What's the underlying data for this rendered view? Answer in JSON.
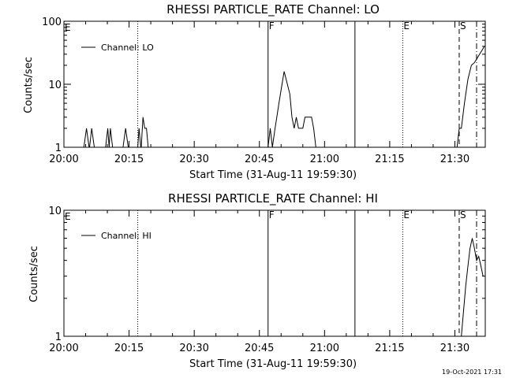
{
  "footer": {
    "date_stamp": "19-Oct-2021 17:31"
  },
  "chart_data": [
    {
      "type": "line",
      "title": "RHESSI PARTICLE_RATE Channel: LO",
      "xlabel": "Start Time (31-Aug-11 19:59:30)",
      "ylabel": "Counts/sec",
      "yscale": "log",
      "ylim": [
        1,
        100
      ],
      "xlim": [
        "20:00",
        "21:37"
      ],
      "x_ticks": [
        "20:00",
        "20:15",
        "20:30",
        "20:45",
        "21:00",
        "21:15",
        "21:30"
      ],
      "y_ticks": [
        "1",
        "10",
        "100"
      ],
      "legend": {
        "label": "Channel: LO",
        "placement": "top-left"
      },
      "vlines": [
        {
          "time": "20:17",
          "style": "dotted",
          "label": ""
        },
        {
          "time": "20:47",
          "style": "solid",
          "label": "F"
        },
        {
          "time": "21:07",
          "style": "solid",
          "label": ""
        },
        {
          "time": "21:18",
          "style": "dotted",
          "label": "E"
        },
        {
          "time": "21:31",
          "style": "dashed",
          "label": "S"
        },
        {
          "time": "21:35",
          "style": "dashdot",
          "label": ""
        }
      ],
      "corner_label": "E",
      "series": [
        {
          "segments": [
            [
              [
                "20:04.6",
                1
              ],
              [
                "20:05.2",
                2
              ],
              [
                "20:05.8",
                1
              ]
            ],
            [
              [
                "20:05.9",
                1
              ],
              [
                "20:06.4",
                2
              ],
              [
                "20:07.0",
                1
              ]
            ],
            [
              [
                "20:09.6",
                1
              ],
              [
                "20:10.1",
                2
              ],
              [
                "20:10.4",
                1
              ],
              [
                "20:10.7",
                2
              ],
              [
                "20:11.2",
                1
              ]
            ],
            [
              [
                "20:13.6",
                1
              ],
              [
                "20:14.2",
                2
              ],
              [
                "20:14.8",
                1
              ]
            ],
            [
              [
                "20:17.0",
                1
              ],
              [
                "20:17.3",
                2
              ],
              [
                "20:17.7",
                1
              ]
            ],
            [
              [
                "20:17.8",
                1
              ],
              [
                "20:18.2",
                3
              ],
              [
                "20:18.6",
                2
              ],
              [
                "20:19.0",
                2
              ],
              [
                "20:19.4",
                1
              ]
            ],
            [
              [
                "20:47.0",
                1
              ],
              [
                "20:47.5",
                2
              ],
              [
                "20:48.0",
                1
              ],
              [
                "20:48.6",
                2
              ],
              [
                "20:49.0",
                3
              ],
              [
                "20:49.5",
                5
              ],
              [
                "20:50.2",
                10
              ],
              [
                "20:50.7",
                16
              ],
              [
                "20:51.3",
                11
              ],
              [
                "20:52.0",
                7
              ],
              [
                "20:52.5",
                3
              ],
              [
                "20:53.0",
                2
              ],
              [
                "20:53.5",
                3
              ],
              [
                "20:54.0",
                2
              ],
              [
                "20:54.5",
                2
              ],
              [
                "20:55.0",
                2
              ],
              [
                "20:55.5",
                3
              ],
              [
                "20:56.0",
                3
              ],
              [
                "20:56.5",
                3
              ],
              [
                "20:57.0",
                3
              ],
              [
                "20:57.5",
                2
              ],
              [
                "20:58.0",
                1
              ]
            ],
            [
              [
                "21:30.5",
                1
              ],
              [
                "21:31.0",
                2
              ],
              [
                "21:31.5",
                2
              ],
              [
                "21:32.2",
                5
              ],
              [
                "21:33.0",
                12
              ],
              [
                "21:33.8",
                20
              ],
              [
                "21:34.5",
                22
              ],
              [
                "21:35.0",
                25
              ],
              [
                "21:35.7",
                30
              ],
              [
                "21:36.3",
                35
              ],
              [
                "21:36.8",
                40
              ]
            ]
          ]
        }
      ]
    },
    {
      "type": "line",
      "title": "RHESSI PARTICLE_RATE Channel: HI",
      "xlabel": "Start Time (31-Aug-11 19:59:30)",
      "ylabel": "Counts/sec",
      "yscale": "log",
      "ylim": [
        1,
        10
      ],
      "xlim": [
        "20:00",
        "21:37"
      ],
      "x_ticks": [
        "20:00",
        "20:15",
        "20:30",
        "20:45",
        "21:00",
        "21:15",
        "21:30"
      ],
      "y_ticks": [
        "1",
        "10"
      ],
      "legend": {
        "label": "Channel: HI",
        "placement": "top-left"
      },
      "vlines": [
        {
          "time": "20:17",
          "style": "dotted",
          "label": ""
        },
        {
          "time": "20:47",
          "style": "solid",
          "label": "F"
        },
        {
          "time": "21:07",
          "style": "solid",
          "label": ""
        },
        {
          "time": "21:18",
          "style": "dotted",
          "label": "E"
        },
        {
          "time": "21:31",
          "style": "dashed",
          "label": "S"
        },
        {
          "time": "21:35",
          "style": "dashdot",
          "label": ""
        }
      ],
      "corner_label": "E",
      "series": [
        {
          "segments": [
            [
              [
                "21:31.5",
                1
              ],
              [
                "21:32.0",
                1.6
              ],
              [
                "21:32.5",
                2.5
              ],
              [
                "21:33.0",
                3.6
              ],
              [
                "21:33.5",
                5.0
              ],
              [
                "21:34.0",
                6.0
              ],
              [
                "21:34.5",
                5.0
              ],
              [
                "21:35.0",
                4.0
              ],
              [
                "21:35.5",
                4.3
              ],
              [
                "21:36.0",
                3.6
              ],
              [
                "21:36.5",
                3.0
              ]
            ]
          ]
        }
      ]
    }
  ]
}
